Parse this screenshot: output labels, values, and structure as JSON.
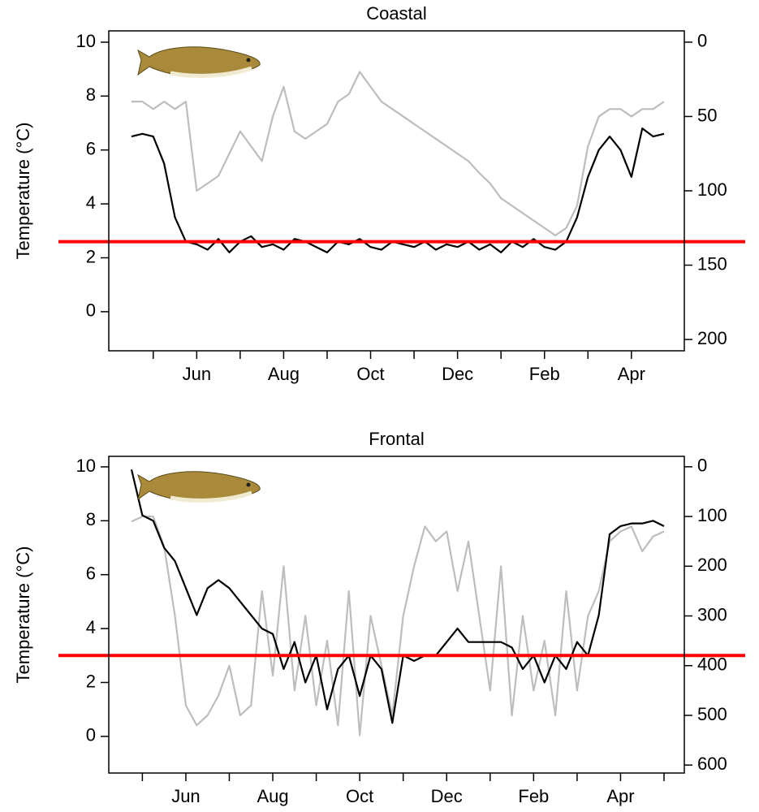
{
  "chart_data": [
    {
      "type": "line",
      "title": "Coastal",
      "ylabel": "Temperature (°C)",
      "categories": [
        null,
        null,
        null,
        null,
        null,
        null,
        "Jun",
        null,
        null,
        null,
        null,
        null,
        null,
        null,
        "Aug",
        null,
        null,
        null,
        null,
        null,
        null,
        null,
        "Oct",
        null,
        null,
        null,
        null,
        null,
        null,
        null,
        "Dec",
        null,
        null,
        null,
        null,
        null,
        null,
        null,
        "Feb",
        null,
        null,
        null,
        null,
        null,
        null,
        null,
        "Apr",
        null,
        null,
        null
      ],
      "ylim": [
        -1.45,
        10.42
      ],
      "yticks": [
        0,
        2,
        4,
        6,
        8,
        10
      ],
      "y2lim": [
        207.6,
        -7.6
      ],
      "y2ticks": [
        0,
        50,
        100,
        150,
        200
      ],
      "series": [
        {
          "color": "#bdbdbd",
          "axis": "y2",
          "values": [
            40,
            40,
            45,
            40,
            45,
            40,
            100,
            95,
            90,
            75,
            60,
            70,
            80,
            50,
            30,
            60,
            65,
            60,
            55,
            40,
            35,
            20,
            30,
            40,
            45,
            50,
            55,
            60,
            65,
            70,
            75,
            80,
            88,
            95,
            105,
            110,
            115,
            120,
            125,
            130,
            125,
            110,
            70,
            50,
            45,
            45,
            50,
            45,
            45,
            40
          ]
        },
        {
          "color": "#000000",
          "values": [
            6.5,
            6.6,
            6.5,
            5.5,
            3.5,
            2.6,
            2.5,
            2.3,
            2.7,
            2.2,
            2.6,
            2.8,
            2.4,
            2.5,
            2.3,
            2.7,
            2.6,
            2.4,
            2.2,
            2.6,
            2.5,
            2.7,
            2.4,
            2.3,
            2.6,
            2.5,
            2.4,
            2.6,
            2.3,
            2.5,
            2.4,
            2.6,
            2.3,
            2.5,
            2.2,
            2.6,
            2.4,
            2.7,
            2.4,
            2.3,
            2.6,
            3.5,
            5.0,
            6.0,
            6.5,
            6.0,
            5.0,
            6.8,
            6.5,
            6.6
          ]
        }
      ],
      "hline": 2.6,
      "hline_color": "#ff0000"
    },
    {
      "type": "line",
      "title": "Frontal",
      "ylabel": "Temperature (°C)",
      "categories": [
        null,
        null,
        null,
        null,
        null,
        "Jun",
        null,
        null,
        null,
        null,
        null,
        null,
        null,
        "Aug",
        null,
        null,
        null,
        null,
        null,
        null,
        null,
        "Oct",
        null,
        null,
        null,
        null,
        null,
        null,
        null,
        "Dec",
        null,
        null,
        null,
        null,
        null,
        null,
        null,
        "Feb",
        null,
        null,
        null,
        null,
        null,
        null,
        null,
        "Apr",
        null,
        null,
        null,
        null
      ],
      "ylim": [
        -1.36,
        10.39
      ],
      "yticks": [
        0,
        2,
        4,
        6,
        8,
        10
      ],
      "y2lim": [
        616,
        -21
      ],
      "y2ticks": [
        0,
        100,
        200,
        300,
        400,
        500,
        600
      ],
      "series": [
        {
          "color": "#bdbdbd",
          "axis": "y2",
          "values": [
            110,
            100,
            100,
            160,
            300,
            480,
            520,
            500,
            460,
            400,
            500,
            480,
            250,
            420,
            200,
            450,
            300,
            480,
            350,
            520,
            250,
            540,
            300,
            400,
            500,
            300,
            200,
            120,
            150,
            130,
            250,
            150,
            300,
            450,
            200,
            500,
            300,
            450,
            350,
            500,
            250,
            450,
            300,
            250,
            150,
            130,
            120,
            170,
            140,
            130
          ]
        },
        {
          "color": "#000000",
          "values": [
            9.9,
            8.2,
            8.0,
            7.0,
            6.5,
            5.5,
            4.5,
            5.5,
            5.8,
            5.5,
            5.0,
            4.5,
            4.0,
            3.8,
            2.5,
            3.5,
            2.0,
            3.0,
            1.0,
            2.5,
            3.0,
            1.5,
            3.0,
            2.5,
            0.5,
            3.0,
            2.8,
            3.0,
            3.0,
            3.5,
            4.0,
            3.5,
            3.5,
            3.5,
            3.5,
            3.3,
            2.5,
            3.0,
            2.0,
            3.0,
            2.5,
            3.5,
            3.0,
            4.5,
            7.5,
            7.8,
            7.9,
            7.9,
            8.0,
            7.8
          ]
        }
      ],
      "hline": 3.0,
      "hline_color": "#ff0000"
    }
  ]
}
